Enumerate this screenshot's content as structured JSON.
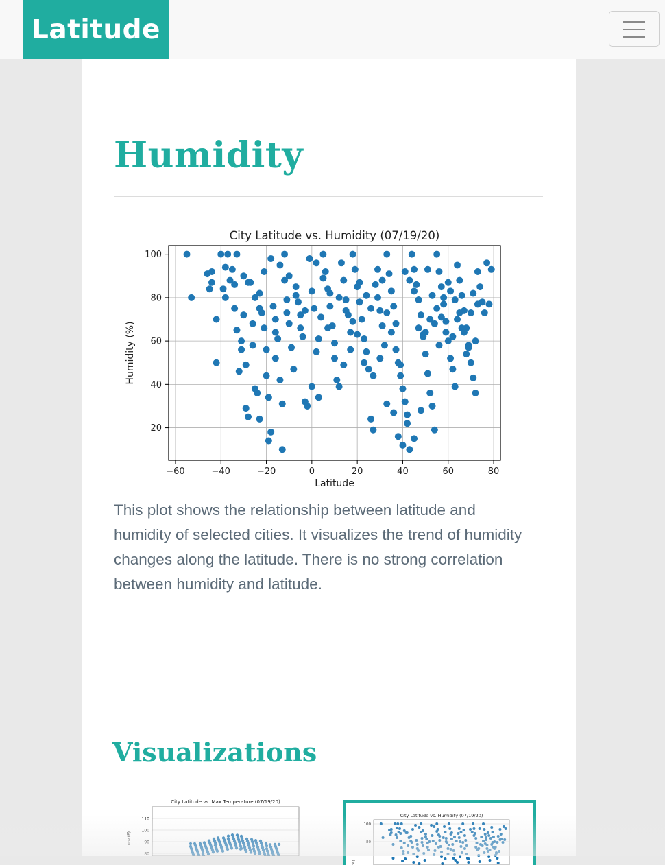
{
  "navbar": {
    "brand": "Latitude",
    "menu_icon": "hamburger-menu-icon"
  },
  "page": {
    "title": "Humidity",
    "description": "This plot shows the relationship between latitude and humidity of selected cities. It visualizes the trend of humidity changes along the latitude. There is no strong correlation between humidity and latitude.",
    "section_title": "Visualizations"
  },
  "colors": {
    "accent": "#20ada0",
    "point": "#1f77b4",
    "text": "#5c6b78"
  },
  "chart_data": [
    {
      "type": "scatter",
      "title": "City Latitude vs. Humidity (07/19/20)",
      "xlabel": "Latitude",
      "ylabel": "Humidity (%)",
      "xlim": [
        -63,
        83
      ],
      "ylim": [
        5,
        104
      ],
      "xticks": [
        "−60",
        "−40",
        "−20",
        "0",
        "20",
        "40",
        "60",
        "80"
      ],
      "yticks": [
        "20",
        "40",
        "60",
        "80",
        "100"
      ],
      "grid": true,
      "series": [
        {
          "points": [
            [
              -55,
              100
            ],
            [
              -53,
              80
            ],
            [
              -46,
              91
            ],
            [
              -45,
              84
            ],
            [
              -44,
              87
            ],
            [
              -42,
              70
            ],
            [
              -42,
              50
            ],
            [
              -40,
              100
            ],
            [
              -39,
              84
            ],
            [
              -38,
              80
            ],
            [
              -37,
              100
            ],
            [
              -36,
              88
            ],
            [
              -35,
              93
            ],
            [
              -34,
              86
            ],
            [
              -34,
              75
            ],
            [
              -33,
              100
            ],
            [
              -33,
              65
            ],
            [
              -32,
              46
            ],
            [
              -31,
              60
            ],
            [
              -31,
              56
            ],
            [
              -30,
              90
            ],
            [
              -30,
              72
            ],
            [
              -29,
              49
            ],
            [
              -29,
              29
            ],
            [
              -28,
              25
            ],
            [
              -27,
              87
            ],
            [
              -26,
              68
            ],
            [
              -26,
              58
            ],
            [
              -25,
              38
            ],
            [
              -24,
              36
            ],
            [
              -23,
              24
            ],
            [
              -23,
              82
            ],
            [
              -22,
              73
            ],
            [
              -21,
              92
            ],
            [
              -21,
              66
            ],
            [
              -20,
              44
            ],
            [
              -19,
              34
            ],
            [
              -19,
              14
            ],
            [
              -18,
              18
            ],
            [
              -17,
              76
            ],
            [
              -16,
              70
            ],
            [
              -16,
              52
            ],
            [
              -15,
              61
            ],
            [
              -14,
              42
            ],
            [
              -13,
              31
            ],
            [
              -13,
              10
            ],
            [
              -12,
              100
            ],
            [
              -12,
              88
            ],
            [
              -11,
              79
            ],
            [
              -10,
              68
            ],
            [
              -9,
              57
            ],
            [
              -8,
              47
            ],
            [
              -7,
              85
            ],
            [
              -6,
              78
            ],
            [
              -5,
              72
            ],
            [
              -4,
              62
            ],
            [
              -3,
              32
            ],
            [
              -2,
              30
            ],
            [
              -1,
              98
            ],
            [
              0,
              83
            ],
            [
              1,
              75
            ],
            [
              2,
              55
            ],
            [
              3,
              34
            ],
            [
              4,
              71
            ],
            [
              5,
              100
            ],
            [
              6,
              92
            ],
            [
              7,
              84
            ],
            [
              8,
              76
            ],
            [
              9,
              67
            ],
            [
              10,
              52
            ],
            [
              11,
              42
            ],
            [
              12,
              39
            ],
            [
              13,
              96
            ],
            [
              14,
              88
            ],
            [
              15,
              79
            ],
            [
              16,
              72
            ],
            [
              17,
              64
            ],
            [
              18,
              100
            ],
            [
              19,
              93
            ],
            [
              20,
              85
            ],
            [
              21,
              78
            ],
            [
              22,
              70
            ],
            [
              23,
              61
            ],
            [
              24,
              55
            ],
            [
              25,
              47
            ],
            [
              26,
              24
            ],
            [
              27,
              19
            ],
            [
              28,
              86
            ],
            [
              29,
              80
            ],
            [
              30,
              74
            ],
            [
              31,
              67
            ],
            [
              32,
              58
            ],
            [
              33,
              100
            ],
            [
              34,
              91
            ],
            [
              35,
              83
            ],
            [
              36,
              76
            ],
            [
              37,
              68
            ],
            [
              38,
              50
            ],
            [
              39,
              44
            ],
            [
              40,
              38
            ],
            [
              41,
              32
            ],
            [
              42,
              26
            ],
            [
              43,
              10
            ],
            [
              44,
              100
            ],
            [
              45,
              93
            ],
            [
              46,
              86
            ],
            [
              47,
              79
            ],
            [
              48,
              72
            ],
            [
              49,
              63
            ],
            [
              50,
              54
            ],
            [
              51,
              45
            ],
            [
              52,
              36
            ],
            [
              53,
              30
            ],
            [
              54,
              19
            ],
            [
              55,
              100
            ],
            [
              56,
              92
            ],
            [
              57,
              85
            ],
            [
              58,
              77
            ],
            [
              59,
              69
            ],
            [
              60,
              60
            ],
            [
              61,
              52
            ],
            [
              62,
              47
            ],
            [
              63,
              39
            ],
            [
              64,
              95
            ],
            [
              65,
              88
            ],
            [
              66,
              81
            ],
            [
              67,
              74
            ],
            [
              68,
              66
            ],
            [
              69,
              58
            ],
            [
              70,
              50
            ],
            [
              71,
              43
            ],
            [
              72,
              36
            ],
            [
              73,
              92
            ],
            [
              74,
              85
            ],
            [
              75,
              78
            ],
            [
              76,
              73
            ],
            [
              77,
              96
            ],
            [
              78,
              77
            ],
            [
              79,
              93
            ],
            [
              -44,
              92
            ],
            [
              -38,
              94
            ],
            [
              -28,
              87
            ],
            [
              -25,
              80
            ],
            [
              -23,
              75
            ],
            [
              -18,
              98
            ],
            [
              -14,
              95
            ],
            [
              -10,
              90
            ],
            [
              -7,
              81
            ],
            [
              -3,
              74
            ],
            [
              2,
              96
            ],
            [
              5,
              89
            ],
            [
              8,
              82
            ],
            [
              12,
              80
            ],
            [
              15,
              74
            ],
            [
              18,
              69
            ],
            [
              21,
              87
            ],
            [
              24,
              81
            ],
            [
              26,
              75
            ],
            [
              29,
              93
            ],
            [
              31,
              88
            ],
            [
              33,
              73
            ],
            [
              35,
              64
            ],
            [
              37,
              56
            ],
            [
              39,
              49
            ],
            [
              41,
              92
            ],
            [
              43,
              88
            ],
            [
              45,
              83
            ],
            [
              47,
              66
            ],
            [
              49,
              62
            ],
            [
              51,
              93
            ],
            [
              53,
              81
            ],
            [
              55,
              75
            ],
            [
              57,
              71
            ],
            [
              59,
              64
            ],
            [
              61,
              83
            ],
            [
              63,
              79
            ],
            [
              65,
              73
            ],
            [
              67,
              64
            ],
            [
              69,
              57
            ],
            [
              71,
              82
            ],
            [
              73,
              77
            ],
            [
              -20,
              56
            ],
            [
              -16,
              64
            ],
            [
              -11,
              73
            ],
            [
              -5,
              66
            ],
            [
              0,
              39
            ],
            [
              3,
              61
            ],
            [
              7,
              66
            ],
            [
              10,
              59
            ],
            [
              14,
              49
            ],
            [
              17,
              56
            ],
            [
              20,
              63
            ],
            [
              23,
              50
            ],
            [
              27,
              44
            ],
            [
              30,
              52
            ],
            [
              33,
              31
            ],
            [
              36,
              27
            ],
            [
              38,
              16
            ],
            [
              40,
              12
            ],
            [
              42,
              22
            ],
            [
              45,
              15
            ],
            [
              48,
              28
            ],
            [
              50,
              64
            ],
            [
              52,
              70
            ],
            [
              54,
              68
            ],
            [
              56,
              58
            ],
            [
              58,
              80
            ],
            [
              60,
              87
            ],
            [
              62,
              62
            ],
            [
              64,
              70
            ],
            [
              66,
              66
            ],
            [
              68,
              54
            ],
            [
              70,
              73
            ],
            [
              72,
              60
            ]
          ]
        }
      ]
    },
    {
      "type": "scatter",
      "title": "City Latitude vs. Max Temperature (07/19/20)",
      "yticks": [
        "110",
        "100",
        "90",
        "80"
      ],
      "ylabel": "ure (F)"
    },
    {
      "type": "scatter",
      "title": "City Latitude vs. Humidity (07/19/20)",
      "yticks": [
        "100",
        "80"
      ],
      "ylabel": "%)"
    }
  ]
}
